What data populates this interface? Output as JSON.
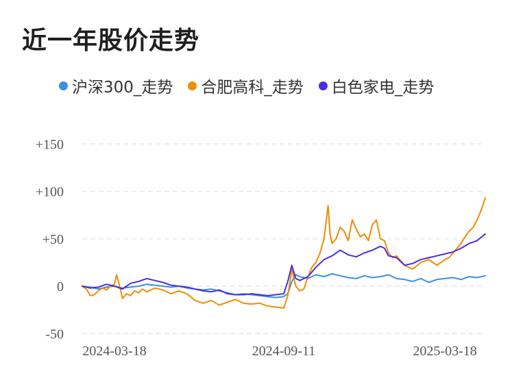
{
  "chart_data": {
    "type": "line",
    "title": "近一年股价走势",
    "ylim": [
      -55,
      160
    ],
    "yticks": [
      {
        "value": 150,
        "label": "+150"
      },
      {
        "value": 100,
        "label": "+100"
      },
      {
        "value": 50,
        "label": "+50"
      },
      {
        "value": 0,
        "label": "0"
      },
      {
        "value": -50,
        "label": "-50"
      }
    ],
    "grid": true,
    "legend_position": "top",
    "xticks": [
      {
        "pos": 0.08,
        "label": "2024-03-18"
      },
      {
        "pos": 0.5,
        "label": "2024-09-11"
      },
      {
        "pos": 0.9,
        "label": "2025-03-18"
      }
    ],
    "series": [
      {
        "name": "沪深300_走势",
        "color": "#3a8ee6",
        "points": [
          [
            0,
            0
          ],
          [
            0.02,
            -1
          ],
          [
            0.04,
            -3
          ],
          [
            0.06,
            -1
          ],
          [
            0.08,
            0
          ],
          [
            0.1,
            -2
          ],
          [
            0.12,
            -1
          ],
          [
            0.14,
            0
          ],
          [
            0.16,
            2
          ],
          [
            0.18,
            1
          ],
          [
            0.2,
            0
          ],
          [
            0.22,
            -1
          ],
          [
            0.24,
            0
          ],
          [
            0.26,
            -2
          ],
          [
            0.28,
            -3
          ],
          [
            0.3,
            -4
          ],
          [
            0.32,
            -3
          ],
          [
            0.34,
            -5
          ],
          [
            0.36,
            -7
          ],
          [
            0.38,
            -9
          ],
          [
            0.4,
            -8
          ],
          [
            0.42,
            -9
          ],
          [
            0.44,
            -10
          ],
          [
            0.46,
            -11
          ],
          [
            0.48,
            -12
          ],
          [
            0.5,
            -11
          ],
          [
            0.51,
            -8
          ],
          [
            0.52,
            5
          ],
          [
            0.53,
            12
          ],
          [
            0.54,
            10
          ],
          [
            0.56,
            8
          ],
          [
            0.58,
            12
          ],
          [
            0.6,
            10
          ],
          [
            0.62,
            13
          ],
          [
            0.64,
            11
          ],
          [
            0.66,
            9
          ],
          [
            0.68,
            8
          ],
          [
            0.7,
            11
          ],
          [
            0.72,
            9
          ],
          [
            0.74,
            10
          ],
          [
            0.76,
            12
          ],
          [
            0.78,
            8
          ],
          [
            0.8,
            7
          ],
          [
            0.82,
            5
          ],
          [
            0.84,
            8
          ],
          [
            0.86,
            4
          ],
          [
            0.88,
            7
          ],
          [
            0.9,
            8
          ],
          [
            0.92,
            9
          ],
          [
            0.94,
            7
          ],
          [
            0.96,
            10
          ],
          [
            0.98,
            9
          ],
          [
            1.0,
            11
          ]
        ]
      },
      {
        "name": "合肥高科_走势",
        "color": "#f08c00",
        "points": [
          [
            0,
            0
          ],
          [
            0.01,
            -3
          ],
          [
            0.02,
            -10
          ],
          [
            0.03,
            -9
          ],
          [
            0.04,
            -5
          ],
          [
            0.05,
            -2
          ],
          [
            0.06,
            -4
          ],
          [
            0.07,
            0
          ],
          [
            0.08,
            2
          ],
          [
            0.085,
            12
          ],
          [
            0.09,
            5
          ],
          [
            0.1,
            -13
          ],
          [
            0.11,
            -8
          ],
          [
            0.12,
            -10
          ],
          [
            0.13,
            -5
          ],
          [
            0.14,
            -7
          ],
          [
            0.15,
            -3
          ],
          [
            0.16,
            -6
          ],
          [
            0.18,
            -2
          ],
          [
            0.2,
            -4
          ],
          [
            0.22,
            -8
          ],
          [
            0.24,
            -5
          ],
          [
            0.26,
            -8
          ],
          [
            0.28,
            -15
          ],
          [
            0.3,
            -18
          ],
          [
            0.32,
            -15
          ],
          [
            0.34,
            -20
          ],
          [
            0.36,
            -17
          ],
          [
            0.38,
            -14
          ],
          [
            0.4,
            -18
          ],
          [
            0.42,
            -19
          ],
          [
            0.44,
            -18
          ],
          [
            0.46,
            -21
          ],
          [
            0.48,
            -22
          ],
          [
            0.5,
            -23
          ],
          [
            0.51,
            -10
          ],
          [
            0.52,
            18
          ],
          [
            0.53,
            0
          ],
          [
            0.54,
            -5
          ],
          [
            0.55,
            -3
          ],
          [
            0.56,
            10
          ],
          [
            0.57,
            20
          ],
          [
            0.58,
            25
          ],
          [
            0.59,
            35
          ],
          [
            0.6,
            50
          ],
          [
            0.61,
            85
          ],
          [
            0.615,
            55
          ],
          [
            0.62,
            45
          ],
          [
            0.63,
            50
          ],
          [
            0.64,
            62
          ],
          [
            0.65,
            58
          ],
          [
            0.66,
            48
          ],
          [
            0.67,
            70
          ],
          [
            0.68,
            60
          ],
          [
            0.69,
            52
          ],
          [
            0.7,
            55
          ],
          [
            0.71,
            48
          ],
          [
            0.72,
            65
          ],
          [
            0.73,
            70
          ],
          [
            0.74,
            50
          ],
          [
            0.75,
            48
          ],
          [
            0.76,
            35
          ],
          [
            0.77,
            30
          ],
          [
            0.78,
            32
          ],
          [
            0.8,
            22
          ],
          [
            0.82,
            18
          ],
          [
            0.84,
            25
          ],
          [
            0.86,
            28
          ],
          [
            0.88,
            22
          ],
          [
            0.9,
            28
          ],
          [
            0.91,
            30
          ],
          [
            0.92,
            35
          ],
          [
            0.94,
            45
          ],
          [
            0.95,
            52
          ],
          [
            0.96,
            58
          ],
          [
            0.97,
            62
          ],
          [
            0.98,
            70
          ],
          [
            0.99,
            80
          ],
          [
            1.0,
            93
          ]
        ]
      },
      {
        "name": "白色家电_走势",
        "color": "#4a2de0",
        "points": [
          [
            0,
            0
          ],
          [
            0.02,
            -2
          ],
          [
            0.04,
            -1
          ],
          [
            0.06,
            2
          ],
          [
            0.08,
            0
          ],
          [
            0.1,
            -3
          ],
          [
            0.12,
            3
          ],
          [
            0.14,
            5
          ],
          [
            0.16,
            8
          ],
          [
            0.18,
            6
          ],
          [
            0.2,
            4
          ],
          [
            0.22,
            1
          ],
          [
            0.24,
            0
          ],
          [
            0.26,
            -1
          ],
          [
            0.28,
            -3
          ],
          [
            0.3,
            -5
          ],
          [
            0.32,
            -6
          ],
          [
            0.34,
            -4
          ],
          [
            0.36,
            -8
          ],
          [
            0.38,
            -9
          ],
          [
            0.4,
            -9
          ],
          [
            0.42,
            -8
          ],
          [
            0.44,
            -9
          ],
          [
            0.46,
            -10
          ],
          [
            0.48,
            -9
          ],
          [
            0.5,
            -8
          ],
          [
            0.51,
            5
          ],
          [
            0.52,
            22
          ],
          [
            0.53,
            8
          ],
          [
            0.54,
            6
          ],
          [
            0.56,
            10
          ],
          [
            0.58,
            20
          ],
          [
            0.6,
            28
          ],
          [
            0.62,
            32
          ],
          [
            0.64,
            38
          ],
          [
            0.66,
            33
          ],
          [
            0.68,
            31
          ],
          [
            0.7,
            35
          ],
          [
            0.72,
            38
          ],
          [
            0.74,
            42
          ],
          [
            0.75,
            40
          ],
          [
            0.76,
            32
          ],
          [
            0.78,
            30
          ],
          [
            0.8,
            22
          ],
          [
            0.82,
            24
          ],
          [
            0.84,
            28
          ],
          [
            0.86,
            30
          ],
          [
            0.88,
            32
          ],
          [
            0.9,
            34
          ],
          [
            0.92,
            36
          ],
          [
            0.94,
            40
          ],
          [
            0.96,
            45
          ],
          [
            0.98,
            48
          ],
          [
            1.0,
            55
          ]
        ]
      }
    ]
  }
}
